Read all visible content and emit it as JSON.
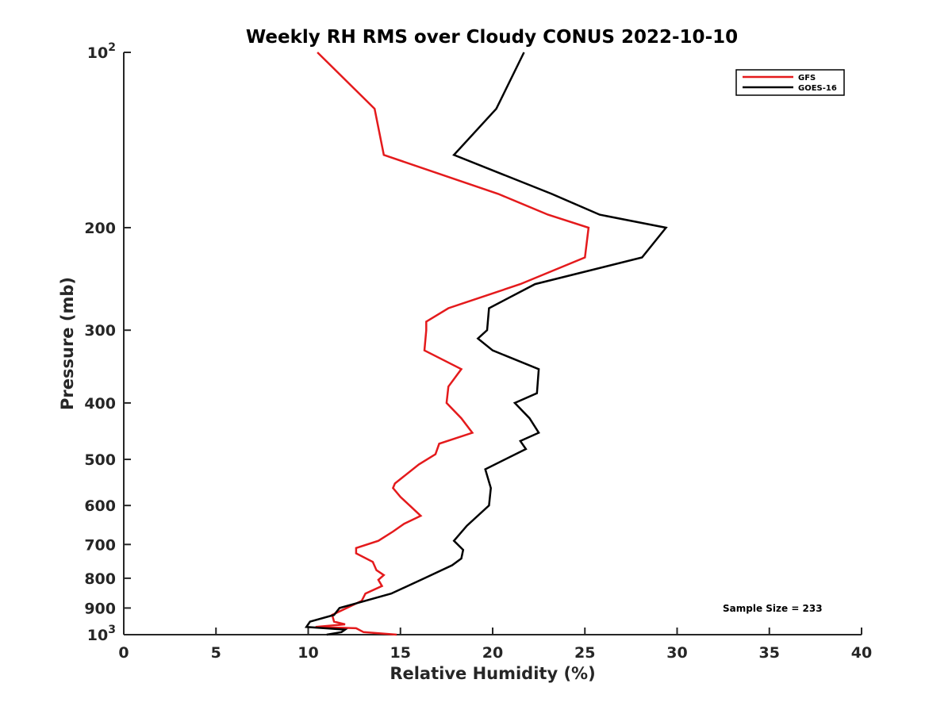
{
  "chart_data": {
    "type": "line",
    "title": "Weekly RH RMS over Cloudy CONUS 2022-10-10",
    "xlabel": "Relative Humidity (%)",
    "ylabel": "Pressure (mb)",
    "xlim": [
      0,
      40
    ],
    "ylim": [
      100,
      1000
    ],
    "y_scale": "log",
    "y_reversed": true,
    "grid": false,
    "legend_position": "top-right",
    "x_ticks": [
      {
        "value": 0,
        "label": "0"
      },
      {
        "value": 5,
        "label": "5"
      },
      {
        "value": 10,
        "label": "10"
      },
      {
        "value": 15,
        "label": "15"
      },
      {
        "value": 20,
        "label": "20"
      },
      {
        "value": 25,
        "label": "25"
      },
      {
        "value": 30,
        "label": "30"
      },
      {
        "value": 35,
        "label": "35"
      },
      {
        "value": 40,
        "label": "40"
      }
    ],
    "y_ticks": [
      {
        "value": 100,
        "label": "10",
        "sup": "2"
      },
      {
        "value": 200,
        "label": "200"
      },
      {
        "value": 300,
        "label": "300"
      },
      {
        "value": 400,
        "label": "400"
      },
      {
        "value": 500,
        "label": "500"
      },
      {
        "value": 600,
        "label": "600"
      },
      {
        "value": 700,
        "label": "700"
      },
      {
        "value": 800,
        "label": "800"
      },
      {
        "value": 900,
        "label": "900"
      },
      {
        "value": 1000,
        "label": "10",
        "sup": "3"
      }
    ],
    "series": [
      {
        "name": "GFS",
        "color": "#e41a1c",
        "points": [
          {
            "x": 10.5,
            "y": 100
          },
          {
            "x": 13.6,
            "y": 125
          },
          {
            "x": 14.1,
            "y": 150
          },
          {
            "x": 20.3,
            "y": 175
          },
          {
            "x": 23.0,
            "y": 190
          },
          {
            "x": 25.2,
            "y": 200
          },
          {
            "x": 25.0,
            "y": 225
          },
          {
            "x": 21.5,
            "y": 250
          },
          {
            "x": 17.6,
            "y": 275
          },
          {
            "x": 16.4,
            "y": 290
          },
          {
            "x": 16.4,
            "y": 300
          },
          {
            "x": 16.3,
            "y": 325
          },
          {
            "x": 18.3,
            "y": 350
          },
          {
            "x": 17.6,
            "y": 375
          },
          {
            "x": 17.5,
            "y": 400
          },
          {
            "x": 18.3,
            "y": 425
          },
          {
            "x": 18.9,
            "y": 450
          },
          {
            "x": 17.1,
            "y": 470
          },
          {
            "x": 16.9,
            "y": 490
          },
          {
            "x": 16.0,
            "y": 510
          },
          {
            "x": 14.7,
            "y": 550
          },
          {
            "x": 14.6,
            "y": 560
          },
          {
            "x": 15.0,
            "y": 580
          },
          {
            "x": 15.5,
            "y": 600
          },
          {
            "x": 16.1,
            "y": 625
          },
          {
            "x": 15.2,
            "y": 645
          },
          {
            "x": 14.6,
            "y": 665
          },
          {
            "x": 13.8,
            "y": 690
          },
          {
            "x": 12.6,
            "y": 710
          },
          {
            "x": 12.6,
            "y": 725
          },
          {
            "x": 13.5,
            "y": 750
          },
          {
            "x": 13.7,
            "y": 775
          },
          {
            "x": 14.1,
            "y": 790
          },
          {
            "x": 13.8,
            "y": 805
          },
          {
            "x": 14.0,
            "y": 825
          },
          {
            "x": 13.1,
            "y": 850
          },
          {
            "x": 12.9,
            "y": 875
          },
          {
            "x": 11.3,
            "y": 925
          },
          {
            "x": 11.4,
            "y": 950
          },
          {
            "x": 12.0,
            "y": 960
          },
          {
            "x": 10.4,
            "y": 970
          },
          {
            "x": 12.6,
            "y": 975
          },
          {
            "x": 13.0,
            "y": 990
          },
          {
            "x": 14.8,
            "y": 1000
          }
        ]
      },
      {
        "name": "GOES-16",
        "color": "#000000",
        "points": [
          {
            "x": 21.7,
            "y": 100
          },
          {
            "x": 20.2,
            "y": 125
          },
          {
            "x": 17.9,
            "y": 150
          },
          {
            "x": 23.2,
            "y": 175
          },
          {
            "x": 25.8,
            "y": 190
          },
          {
            "x": 29.4,
            "y": 200
          },
          {
            "x": 28.1,
            "y": 225
          },
          {
            "x": 22.3,
            "y": 250
          },
          {
            "x": 19.8,
            "y": 275
          },
          {
            "x": 19.7,
            "y": 300
          },
          {
            "x": 19.2,
            "y": 310
          },
          {
            "x": 20.0,
            "y": 325
          },
          {
            "x": 22.5,
            "y": 350
          },
          {
            "x": 22.4,
            "y": 385
          },
          {
            "x": 21.2,
            "y": 400
          },
          {
            "x": 22.0,
            "y": 425
          },
          {
            "x": 22.5,
            "y": 450
          },
          {
            "x": 21.5,
            "y": 465
          },
          {
            "x": 21.8,
            "y": 480
          },
          {
            "x": 19.6,
            "y": 520
          },
          {
            "x": 19.9,
            "y": 560
          },
          {
            "x": 19.8,
            "y": 600
          },
          {
            "x": 18.6,
            "y": 650
          },
          {
            "x": 17.9,
            "y": 690
          },
          {
            "x": 18.4,
            "y": 715
          },
          {
            "x": 18.3,
            "y": 740
          },
          {
            "x": 17.8,
            "y": 760
          },
          {
            "x": 16.3,
            "y": 800
          },
          {
            "x": 14.5,
            "y": 850
          },
          {
            "x": 11.7,
            "y": 900
          },
          {
            "x": 11.4,
            "y": 925
          },
          {
            "x": 10.1,
            "y": 950
          },
          {
            "x": 9.9,
            "y": 970
          },
          {
            "x": 12.0,
            "y": 980
          },
          {
            "x": 11.8,
            "y": 990
          },
          {
            "x": 11.0,
            "y": 1000
          }
        ]
      }
    ],
    "annotations": [
      {
        "text": "Sample Size = 233",
        "x": 36.1,
        "y": 910
      }
    ]
  }
}
